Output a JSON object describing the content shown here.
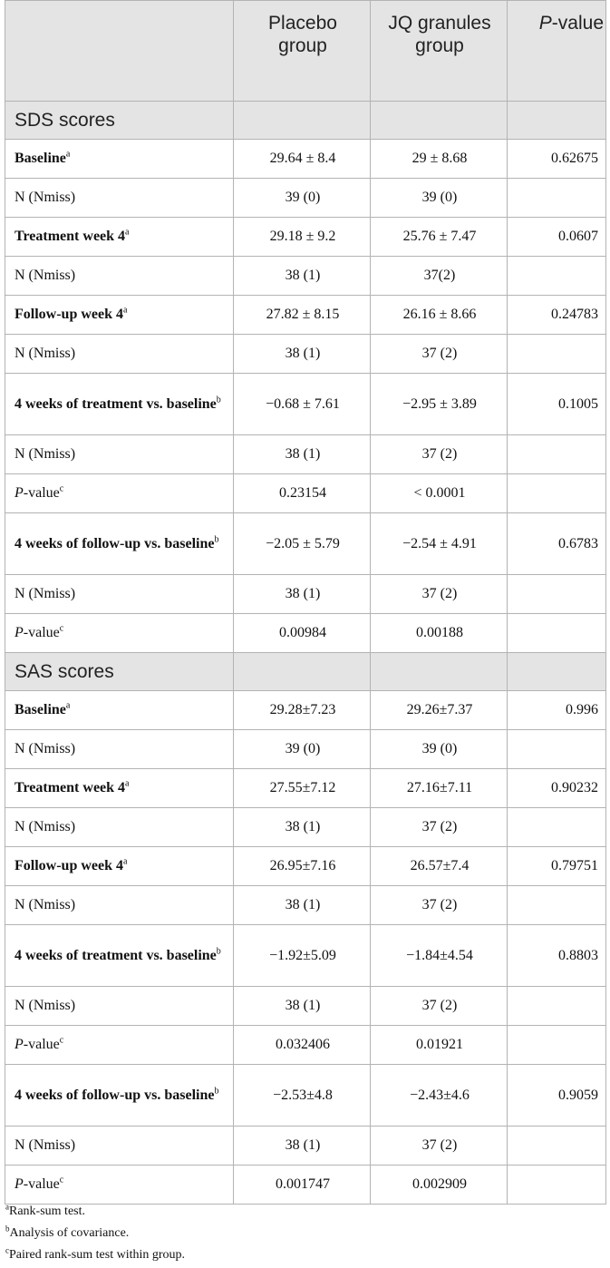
{
  "header": {
    "col1": "",
    "col2": "Placebo group",
    "col3": "JQ granules group",
    "col4_italic": "P",
    "col4_rest": "-value"
  },
  "sections": [
    {
      "title": "SDS scores",
      "rows": [
        {
          "label": "Baseline",
          "sup": "a",
          "bold": true,
          "tall": false,
          "placebo": "29.64 ± 8.4",
          "jq": "29 ± 8.68",
          "p": "0.62675"
        },
        {
          "label": "N (Nmiss)",
          "sup": "",
          "bold": false,
          "tall": false,
          "placebo": "39 (0)",
          "jq": "39 (0)",
          "p": ""
        },
        {
          "label": "Treatment week 4",
          "sup": "a",
          "bold": true,
          "tall": false,
          "placebo": "29.18 ± 9.2",
          "jq": "25.76 ± 7.47",
          "p": "0.0607"
        },
        {
          "label": "N (Nmiss)",
          "sup": "",
          "bold": false,
          "tall": false,
          "placebo": "38 (1)",
          "jq": "37(2)",
          "p": ""
        },
        {
          "label": "Follow-up week 4",
          "sup": "a",
          "bold": true,
          "tall": false,
          "placebo": "27.82 ± 8.15",
          "jq": "26.16 ± 8.66",
          "p": "0.24783"
        },
        {
          "label": "N (Nmiss)",
          "sup": "",
          "bold": false,
          "tall": false,
          "placebo": "38 (1)",
          "jq": "37 (2)",
          "p": ""
        },
        {
          "label": "4 weeks of treatment vs. baseline",
          "sup": "b",
          "bold": true,
          "tall": true,
          "placebo": "−0.68 ± 7.61",
          "jq": "−2.95 ± 3.89",
          "p": "0.1005"
        },
        {
          "label": "N (Nmiss)",
          "sup": "",
          "bold": false,
          "tall": false,
          "placebo": "38 (1)",
          "jq": "37 (2)",
          "p": ""
        },
        {
          "label": "P-value",
          "italicP": true,
          "sup": "c",
          "bold": false,
          "tall": false,
          "placebo": "0.23154",
          "jq": "< 0.0001",
          "p": ""
        },
        {
          "label": "4 weeks of follow-up vs. baseline",
          "sup": "b",
          "bold": true,
          "tall": true,
          "placebo": "−2.05 ± 5.79",
          "jq": "−2.54 ± 4.91",
          "p": "0.6783"
        },
        {
          "label": "N (Nmiss)",
          "sup": "",
          "bold": false,
          "tall": false,
          "placebo": "38 (1)",
          "jq": "37 (2)",
          "p": ""
        },
        {
          "label": "P-value",
          "italicP": true,
          "sup": "c",
          "bold": false,
          "tall": false,
          "placebo": "0.00984",
          "jq": "0.00188",
          "p": ""
        }
      ]
    },
    {
      "title": "SAS scores",
      "rows": [
        {
          "label": "Baseline",
          "sup": "a",
          "bold": true,
          "tall": false,
          "placebo": "29.28±7.23",
          "jq": "29.26±7.37",
          "p": "0.996"
        },
        {
          "label": "N (Nmiss)",
          "sup": "",
          "bold": false,
          "tall": false,
          "placebo": "39 (0)",
          "jq": "39 (0)",
          "p": ""
        },
        {
          "label": "Treatment week 4",
          "sup": "a",
          "bold": true,
          "tall": false,
          "placebo": "27.55±7.12",
          "jq": "27.16±7.11",
          "p": "0.90232"
        },
        {
          "label": "N (Nmiss)",
          "sup": "",
          "bold": false,
          "tall": false,
          "placebo": "38 (1)",
          "jq": "37 (2)",
          "p": ""
        },
        {
          "label": "Follow-up week 4",
          "sup": "a",
          "bold": true,
          "tall": false,
          "placebo": "26.95±7.16",
          "jq": "26.57±7.4",
          "p": "0.79751"
        },
        {
          "label": "N (Nmiss)",
          "sup": "",
          "bold": false,
          "tall": false,
          "placebo": "38 (1)",
          "jq": "37 (2)",
          "p": ""
        },
        {
          "label": "4 weeks of treatment vs. baseline",
          "sup": "b",
          "bold": true,
          "tall": true,
          "placebo": "−1.92±5.09",
          "jq": "−1.84±4.54",
          "p": "0.8803"
        },
        {
          "label": "N (Nmiss)",
          "sup": "",
          "bold": false,
          "tall": false,
          "placebo": "38 (1)",
          "jq": "37 (2)",
          "p": ""
        },
        {
          "label": "P-value",
          "italicP": true,
          "sup": "c",
          "bold": false,
          "tall": false,
          "placebo": "0.032406",
          "jq": "0.01921",
          "p": ""
        },
        {
          "label": "4 weeks of follow-up vs. baseline",
          "sup": "b",
          "bold": true,
          "tall": true,
          "placebo": "−2.53±4.8",
          "jq": "−2.43±4.6",
          "p": "0.9059"
        },
        {
          "label": "N (Nmiss)",
          "sup": "",
          "bold": false,
          "tall": false,
          "placebo": "38 (1)",
          "jq": "37 (2)",
          "p": ""
        },
        {
          "label": "P-value",
          "italicP": true,
          "sup": "c",
          "bold": false,
          "tall": false,
          "placebo": "0.001747",
          "jq": "0.002909",
          "p": ""
        }
      ]
    }
  ],
  "footnotes": [
    {
      "mark": "a",
      "text": "Rank-sum test."
    },
    {
      "mark": "b",
      "text": "Analysis of covariance."
    },
    {
      "mark": "c",
      "text": "Paired rank-sum test within group."
    }
  ]
}
